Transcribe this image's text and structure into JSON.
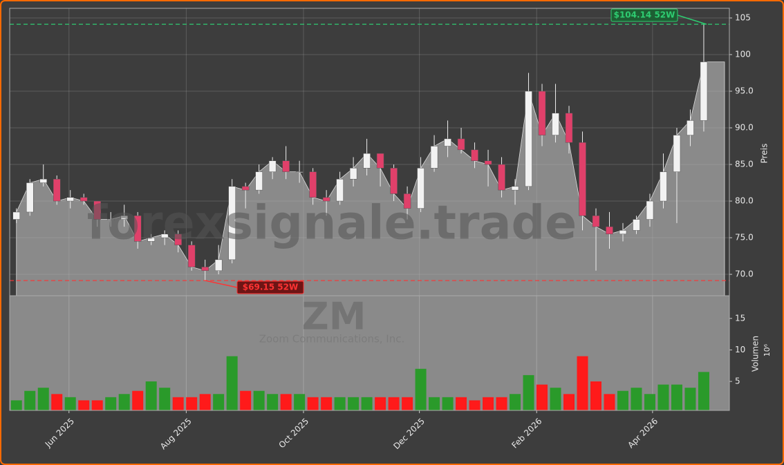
{
  "chart_data": {
    "type": "candlestick",
    "watermark": "forexsignale.trade",
    "symbol": "ZM",
    "company": "Zoom Communications, Inc.",
    "ylabel": "Preis",
    "volume_label": "Volumen",
    "volume_unit": "10⁶",
    "categories": [
      null,
      null,
      null,
      null,
      null,
      null,
      null,
      null,
      null,
      null,
      null,
      null,
      null,
      null,
      null,
      null,
      null,
      null,
      null,
      null,
      null,
      null,
      null,
      null,
      null,
      null,
      null,
      null,
      null,
      null,
      null,
      null,
      null,
      null,
      null,
      null,
      null,
      null,
      null,
      null,
      null,
      null,
      null,
      null,
      null,
      null,
      null,
      null,
      null,
      null,
      null,
      null
    ],
    "open": [
      77.5,
      78.5,
      82.5,
      83,
      80,
      80.5,
      80,
      77.5,
      77.5,
      78,
      74.5,
      75,
      75.5,
      74,
      71,
      70.5,
      72,
      82,
      81.5,
      84,
      85.5,
      84,
      84,
      80.5,
      80,
      83,
      84.5,
      86.5,
      84.5,
      81,
      79,
      84.5,
      87.5,
      88.5,
      87,
      85.5,
      85,
      81.5,
      82,
      95,
      89,
      92,
      88,
      78,
      76.5,
      75.5,
      76,
      77.5,
      80,
      84,
      89,
      91
    ],
    "high": [
      79,
      83,
      85,
      83.5,
      81.5,
      81,
      80,
      78.5,
      79.5,
      78.5,
      75.5,
      76,
      76,
      74.5,
      72,
      74,
      83,
      82.5,
      85,
      86,
      87.5,
      85.5,
      84.5,
      81.5,
      84,
      86,
      88.5,
      86.5,
      85,
      82,
      86,
      89,
      91,
      90,
      88,
      87,
      86,
      83,
      97.5,
      96,
      96,
      93,
      89.5,
      79,
      78.5,
      77,
      78,
      81,
      86.5,
      90,
      92.5,
      104.14
    ],
    "low": [
      77,
      78,
      82,
      79.5,
      79,
      79.5,
      76.5,
      76.5,
      76.5,
      73.5,
      74,
      74,
      73,
      70.5,
      69.15,
      70,
      71.5,
      79,
      81,
      83,
      83,
      82.5,
      79.5,
      78,
      79.5,
      82,
      83.5,
      82,
      80,
      77.5,
      78.5,
      84,
      86,
      86.5,
      84.5,
      82,
      80.5,
      79.5,
      81.5,
      87.5,
      88,
      86.5,
      76,
      70.5,
      73.5,
      74.5,
      75.5,
      76.5,
      79,
      77,
      87.5,
      89.5
    ],
    "close": [
      78.5,
      82.5,
      83,
      80,
      80.5,
      80,
      77.5,
      77.5,
      78,
      74.5,
      75,
      75.5,
      74,
      71,
      70.5,
      72,
      82,
      81.5,
      84,
      85.5,
      84,
      84,
      80.5,
      80,
      83,
      84.5,
      86.5,
      84.5,
      81,
      79,
      84.5,
      87.5,
      88.5,
      87,
      85.5,
      85,
      81.5,
      82,
      95,
      89,
      92,
      88,
      78,
      76.5,
      75.5,
      76,
      77.5,
      80,
      84,
      89,
      91,
      99
    ],
    "volume": [
      2,
      3.5,
      4,
      3,
      2.5,
      2,
      2,
      2.5,
      3,
      3.5,
      5,
      4,
      2.5,
      2.5,
      3,
      3,
      9,
      3.5,
      3.5,
      3,
      3,
      3,
      2.5,
      2.5,
      2.5,
      2.5,
      2.5,
      2.5,
      2.5,
      2.5,
      7,
      2.5,
      2.5,
      2.5,
      2,
      2.5,
      2.5,
      3,
      6,
      4.5,
      4,
      3,
      9,
      5,
      3,
      3.5,
      4,
      3,
      4.5,
      4.5,
      4,
      6.5
    ],
    "up_color": "#f2f2f2",
    "down_color": "#e0406a",
    "volume_up_color": "#2a9a2a",
    "volume_down_color": "#ff1a1a",
    "area_color": "#8a8a8a",
    "xlim": [
      -0.5,
      52.9
    ],
    "xticks": [
      {
        "value": 3.9,
        "label": "Jun 2025"
      },
      {
        "value": 12.6,
        "label": "Aug 2025"
      },
      {
        "value": 21.3,
        "label": "Oct 2025"
      },
      {
        "value": 29.9,
        "label": "Dec 2025"
      },
      {
        "value": 38.6,
        "label": "Feb 2026"
      },
      {
        "value": 47.2,
        "label": "Apr 2026"
      }
    ],
    "ylim": [
      67.08,
      106.32
    ],
    "yticks": [
      {
        "value": 70,
        "label": "70.0"
      },
      {
        "value": 75,
        "label": "75.0"
      },
      {
        "value": 80,
        "label": "80.0"
      },
      {
        "value": 85,
        "label": "85.0"
      },
      {
        "value": 90,
        "label": "90.0"
      },
      {
        "value": 95,
        "label": "95.0"
      },
      {
        "value": 100,
        "label": "100"
      },
      {
        "value": 105,
        "label": "105"
      }
    ],
    "volume_ylim": [
      0.4,
      18.6
    ],
    "volume_yticks": [
      5,
      10,
      15
    ],
    "grid": true,
    "high_52w": {
      "value": 104.14,
      "label": "$104.14 52W",
      "color": "#2ecc71"
    },
    "low_52w": {
      "value": 69.15,
      "label": "$69.15 52W",
      "color": "#ff3333"
    }
  }
}
